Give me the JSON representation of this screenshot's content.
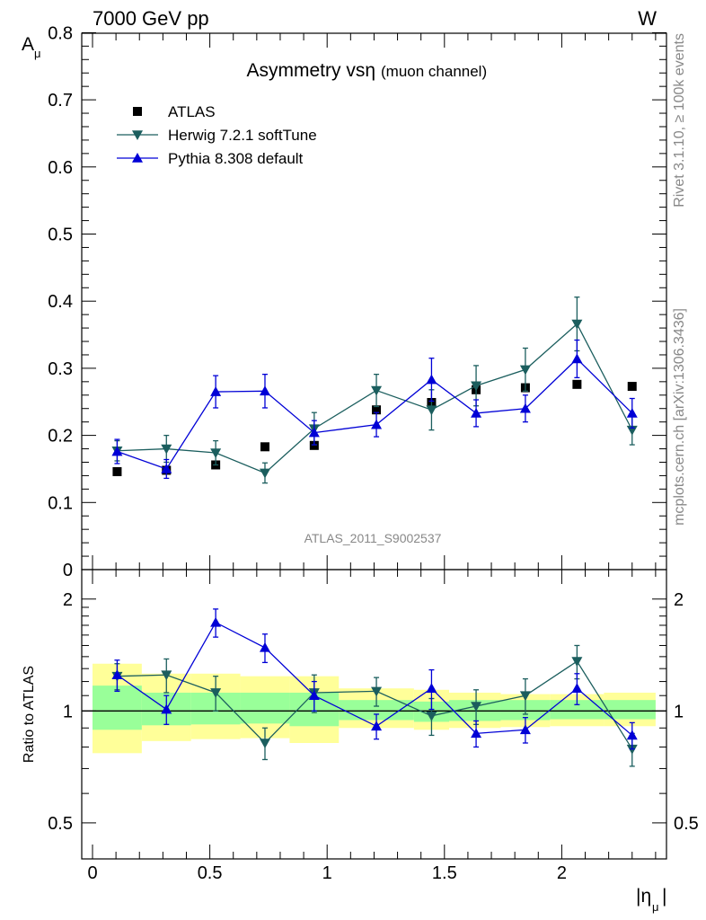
{
  "header": {
    "energy": "7000 GeV pp",
    "process": "W"
  },
  "side_text": {
    "rivet": "Rivet 3.1.10, ≥ 100k events",
    "site": "mcplots.cern.ch [arXiv:1306.3436]"
  },
  "chart_data": [
    {
      "type": "scatter",
      "title": "Asymmetry vsη",
      "title_note": "(muon channel)",
      "ylabel_main": "A",
      "ylabel_sub": "μ",
      "xlabel_main": "|η",
      "xlabel_sub": "μ",
      "xlabel_end": "|",
      "analysis_label": "ATLAS_2011_S9002537",
      "xlim": [
        -0.05,
        2.45
      ],
      "ylim": [
        0.0,
        0.8
      ],
      "yticks": [
        0.1,
        0.2,
        0.3,
        0.4,
        0.5,
        0.6,
        0.7,
        0.8
      ],
      "ytick_labels": [
        "0.1",
        "0.2",
        "0.3",
        "0.4",
        "0.5",
        "0.6",
        "0.7",
        "0.8"
      ],
      "partial_bottom_label": "0",
      "legend_position": "top-left",
      "x": [
        0.105,
        0.315,
        0.525,
        0.735,
        0.945,
        1.21,
        1.445,
        1.635,
        1.845,
        2.065,
        2.3
      ],
      "series": [
        {
          "name": "ATLAS",
          "marker": "square",
          "color": "#000000",
          "values": [
            0.146,
            0.148,
            0.156,
            0.183,
            0.185,
            0.238,
            0.249,
            0.268,
            0.271,
            0.276,
            0.273
          ]
        },
        {
          "name": "Herwig 7.2.1 softTune",
          "marker": "triangle-down",
          "color": "#1b5e5e",
          "values": [
            0.177,
            0.18,
            0.174,
            0.144,
            0.21,
            0.267,
            0.238,
            0.274,
            0.298,
            0.366,
            0.208
          ],
          "errors": [
            0.015,
            0.02,
            0.018,
            0.015,
            0.024,
            0.024,
            0.03,
            0.03,
            0.032,
            0.04,
            0.022
          ]
        },
        {
          "name": "Pythia 8.308 default",
          "marker": "triangle-up",
          "color": "#0000d6",
          "values": [
            0.176,
            0.15,
            0.265,
            0.266,
            0.204,
            0.216,
            0.283,
            0.233,
            0.24,
            0.314,
            0.233
          ],
          "errors": [
            0.018,
            0.014,
            0.024,
            0.025,
            0.018,
            0.018,
            0.032,
            0.02,
            0.02,
            0.028,
            0.022
          ]
        }
      ]
    },
    {
      "type": "scatter",
      "ylabel": "Ratio to ATLAS",
      "log_y": true,
      "ylim": [
        0.4,
        2.4
      ],
      "yticks": [
        0.5,
        1,
        2
      ],
      "ytick_labels": [
        "0.5",
        "1",
        "2"
      ],
      "xticks": [
        0,
        0.5,
        1,
        1.5,
        2
      ],
      "xtick_labels": [
        "0",
        "0.5",
        "1",
        "1.5",
        "2"
      ],
      "bins": [
        [
          0.0,
          0.21
        ],
        [
          0.21,
          0.42
        ],
        [
          0.42,
          0.63
        ],
        [
          0.63,
          0.84
        ],
        [
          0.84,
          1.05
        ],
        [
          1.05,
          1.37
        ],
        [
          1.37,
          1.52
        ],
        [
          1.52,
          1.74
        ],
        [
          1.74,
          1.95
        ],
        [
          1.95,
          2.18
        ],
        [
          2.18,
          2.4
        ]
      ],
      "band_total": [
        [
          0.77,
          1.34
        ],
        [
          0.83,
          1.26
        ],
        [
          0.84,
          1.26
        ],
        [
          0.845,
          1.24
        ],
        [
          0.82,
          1.24
        ],
        [
          0.9,
          1.15
        ],
        [
          0.89,
          1.14
        ],
        [
          0.9,
          1.12
        ],
        [
          0.905,
          1.11
        ],
        [
          0.91,
          1.11
        ],
        [
          0.91,
          1.12
        ]
      ],
      "band_stat": [
        [
          0.89,
          1.17
        ],
        [
          0.915,
          1.12
        ],
        [
          0.92,
          1.12
        ],
        [
          0.925,
          1.12
        ],
        [
          0.91,
          1.12
        ],
        [
          0.945,
          1.07
        ],
        [
          0.935,
          1.06
        ],
        [
          0.94,
          1.07
        ],
        [
          0.945,
          1.07
        ],
        [
          0.95,
          1.07
        ],
        [
          0.95,
          1.07
        ]
      ],
      "band_colors": {
        "total": "#ffff99",
        "stat": "#99ff99"
      },
      "x": [
        0.105,
        0.315,
        0.525,
        0.735,
        0.945,
        1.21,
        1.445,
        1.635,
        1.845,
        2.065,
        2.3
      ],
      "series": [
        {
          "name": "Herwig 7.2.1 softTune",
          "marker": "triangle-down",
          "color": "#1b5e5e",
          "values": [
            1.24,
            1.25,
            1.12,
            0.82,
            1.12,
            1.13,
            0.97,
            1.03,
            1.1,
            1.36,
            0.79
          ],
          "errors": [
            0.1,
            0.13,
            0.12,
            0.08,
            0.13,
            0.1,
            0.11,
            0.11,
            0.12,
            0.14,
            0.08
          ]
        },
        {
          "name": "Pythia 8.308 default",
          "marker": "triangle-up",
          "color": "#0000d6",
          "values": [
            1.25,
            1.01,
            1.73,
            1.48,
            1.1,
            0.91,
            1.15,
            0.87,
            0.89,
            1.15,
            0.86
          ],
          "errors": [
            0.12,
            0.09,
            0.15,
            0.13,
            0.1,
            0.07,
            0.14,
            0.07,
            0.07,
            0.11,
            0.07
          ]
        }
      ]
    }
  ]
}
